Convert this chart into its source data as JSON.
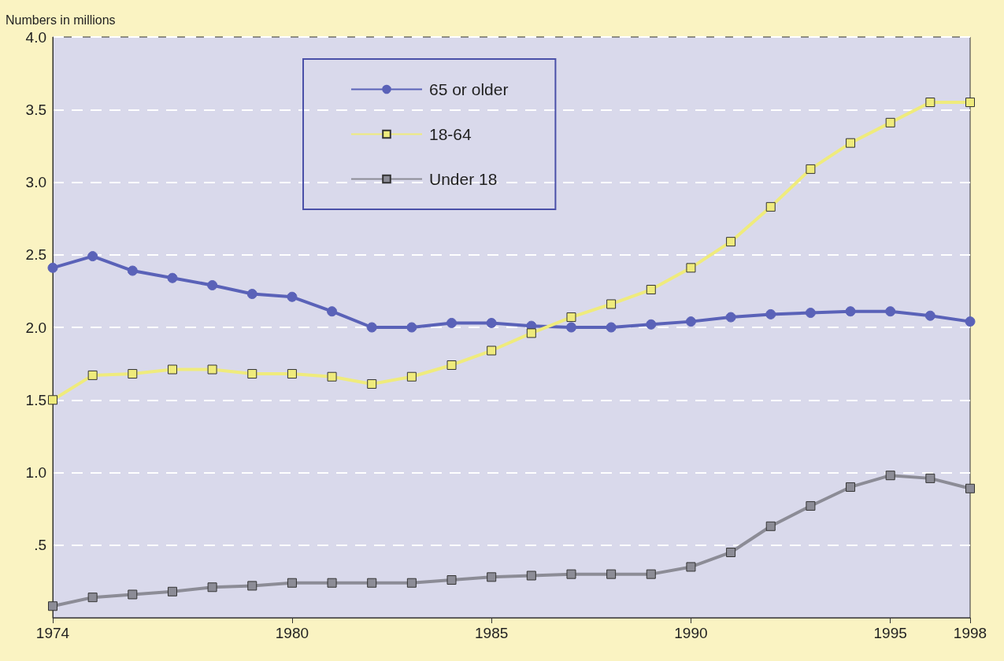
{
  "chart_data": {
    "type": "line",
    "ylabel": "Numbers in millions",
    "categories": [
      "1974",
      null,
      null,
      null,
      null,
      null,
      "1980",
      null,
      null,
      null,
      null,
      "1985",
      null,
      null,
      null,
      null,
      "1990",
      null,
      null,
      null,
      null,
      "1995",
      null,
      "1998"
    ],
    "series": [
      {
        "name": "65 or older",
        "color": "#5a62b8",
        "marker": "circle",
        "values": [
          2.41,
          2.49,
          2.39,
          2.34,
          2.29,
          2.23,
          2.21,
          2.11,
          2.0,
          2.0,
          2.03,
          2.03,
          2.01,
          2.0,
          2.0,
          2.02,
          2.04,
          2.07,
          2.09,
          2.1,
          2.11,
          2.11,
          2.08,
          2.04
        ]
      },
      {
        "name": "18-64",
        "color": "#efeb7c",
        "marker": "square",
        "values": [
          1.5,
          1.67,
          1.68,
          1.71,
          1.71,
          1.68,
          1.68,
          1.66,
          1.61,
          1.66,
          1.74,
          1.84,
          1.96,
          2.07,
          2.16,
          2.26,
          2.41,
          2.59,
          2.83,
          3.09,
          3.27,
          3.41,
          3.55,
          3.55
        ]
      },
      {
        "name": "Under 18",
        "color": "#8c8c96",
        "marker": "square",
        "values": [
          0.08,
          0.14,
          0.16,
          0.18,
          0.21,
          0.22,
          0.24,
          0.24,
          0.24,
          0.24,
          0.26,
          0.28,
          0.29,
          0.3,
          0.3,
          0.3,
          0.35,
          0.45,
          0.63,
          0.77,
          0.9,
          0.98,
          0.96,
          0.89
        ]
      }
    ],
    "ylim": [
      0,
      4
    ],
    "yticks": [
      {
        "value": 0.5,
        "label": ".5"
      },
      {
        "value": 1,
        "label": "1.0"
      },
      {
        "value": 1.5,
        "label": "1.5"
      },
      {
        "value": 2,
        "label": "2.0"
      },
      {
        "value": 2.5,
        "label": "2.5"
      },
      {
        "value": 3,
        "label": "3.0"
      },
      {
        "value": 3.5,
        "label": "3.5"
      },
      {
        "value": 4,
        "label": "4.0"
      }
    ],
    "grid": "y",
    "legend": "top"
  }
}
